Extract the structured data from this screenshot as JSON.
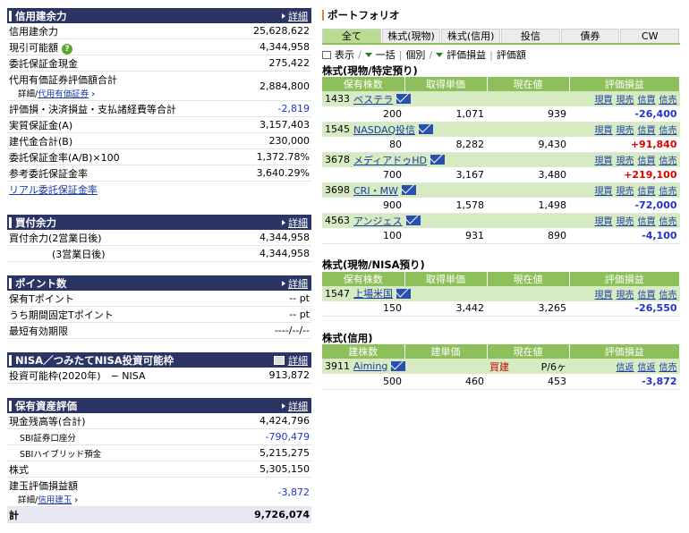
{
  "credit": {
    "title": "信用建余力",
    "detail": "詳細",
    "rows": [
      {
        "label": "信用建余力",
        "value": "25,628,622"
      },
      {
        "label": "現引可能額",
        "value": "4,344,958"
      },
      {
        "label": "委託保証金現金",
        "value": "275,422"
      },
      {
        "label": "代用有価証券評価額合計",
        "sub_prefix": "詳細/",
        "sub_link": "代用有価証券",
        "value": "2,884,800"
      },
      {
        "label": "評価損・決済損益・支払諸経費等合計",
        "value": "-2,819"
      },
      {
        "label": "実質保証金(A)",
        "value": "3,157,403"
      },
      {
        "label": "建代金合計(B)",
        "value": "230,000"
      },
      {
        "label": "委託保証金率(A/B)×100",
        "value": "1,372.78%"
      },
      {
        "label": "参考委託保証金率",
        "value": "3,640.29%"
      }
    ],
    "realtime_link": "リアル委託保証金率"
  },
  "buying": {
    "title": "買付余力",
    "detail": "詳細",
    "rows": [
      {
        "label": "買付余力(2営業日後)",
        "value": "4,344,958"
      },
      {
        "label": "(3営業日後)",
        "value": "4,344,958"
      }
    ]
  },
  "points": {
    "title": "ポイント数",
    "detail": "詳細",
    "rows": [
      {
        "label": "保有Tポイント",
        "value": "-- pt"
      },
      {
        "label": "うち期間固定Tポイント",
        "value": "-- pt"
      },
      {
        "label": "最短有効期限",
        "value": "----/--/--"
      }
    ]
  },
  "nisa": {
    "title": "NISA／つみたてNISA投資可能枠",
    "detail": "詳細",
    "row": {
      "label": "投資可能枠(2020年)　− NISA",
      "value": "913,872"
    }
  },
  "assets": {
    "title": "保有資産評価",
    "detail": "詳細",
    "cash_label": "現金残高等(合計)",
    "cash_value": "4,424,796",
    "sbi_label": "SBI証券口座分",
    "sbi_value": "-790,479",
    "hybrid_label": "SBIハイブリッド預金",
    "hybrid_value": "5,215,275",
    "stock_label": "株式",
    "stock_value": "5,305,150",
    "eval_label": "建玉評価損益額",
    "eval_sub_prefix": "詳細/",
    "eval_sub_link": "信用建玉",
    "eval_value": "-3,872",
    "total_label": "計",
    "total_value": "9,726,074"
  },
  "portfolio": {
    "title": "ポートフォリオ",
    "tabs": [
      "全て",
      "株式(現物)",
      "株式(信用)",
      "投信",
      "債券",
      "CW"
    ],
    "active_tab": 0,
    "toolbar": {
      "display": "表示",
      "bulk": "一括",
      "individual": "個別",
      "eval": "評価損益",
      "eval_amount": "評価額"
    },
    "actions": [
      "現買",
      "現売",
      "信買",
      "信売"
    ],
    "margin_actions": [
      "信返",
      "信返",
      "信売"
    ],
    "section1": {
      "title": "株式(現物/特定預り)",
      "headers": [
        "保有株数",
        "取得単価",
        "現在値",
        "評価損益"
      ],
      "rows": [
        {
          "code": "1433",
          "name": "ベステラ",
          "qty": "200",
          "cost": "1,071",
          "price": "939",
          "pl": "-26,400",
          "sign": "neg"
        },
        {
          "code": "1545",
          "name": "NASDAQ投信",
          "qty": "80",
          "cost": "8,282",
          "price": "9,430",
          "pl": "+91,840",
          "sign": "pos"
        },
        {
          "code": "3678",
          "name": "メディアドゥHD",
          "qty": "700",
          "cost": "3,167",
          "price": "3,480",
          "pl": "+219,100",
          "sign": "pos"
        },
        {
          "code": "3698",
          "name": "CRI・MW",
          "qty": "900",
          "cost": "1,578",
          "price": "1,498",
          "pl": "-72,000",
          "sign": "neg"
        },
        {
          "code": "4563",
          "name": "アンジェス",
          "qty": "100",
          "cost": "931",
          "price": "890",
          "pl": "-4,100",
          "sign": "neg"
        }
      ]
    },
    "section2": {
      "title": "株式(現物/NISA預り)",
      "headers": [
        "保有株数",
        "取得単価",
        "現在値",
        "評価損益"
      ],
      "rows": [
        {
          "code": "1547",
          "name": "上場米国",
          "qty": "150",
          "cost": "3,442",
          "price": "3,265",
          "pl": "-26,550",
          "sign": "neg"
        }
      ]
    },
    "section3": {
      "title": "株式(信用)",
      "headers": [
        "建株数",
        "建単価",
        "現在値",
        "評価損益"
      ],
      "rows": [
        {
          "code": "3911",
          "name": "Aiming",
          "type": "買建",
          "term": "P/6ヶ",
          "qty": "500",
          "cost": "460",
          "price": "453",
          "pl": "-3,872",
          "sign": "neg"
        }
      ]
    }
  },
  "colors": {
    "header_bg": "#2a3566",
    "table_header": "#8dbf5b",
    "name_row": "#d7ebc3",
    "negative": "#1f35c6",
    "positive": "#e00000"
  }
}
